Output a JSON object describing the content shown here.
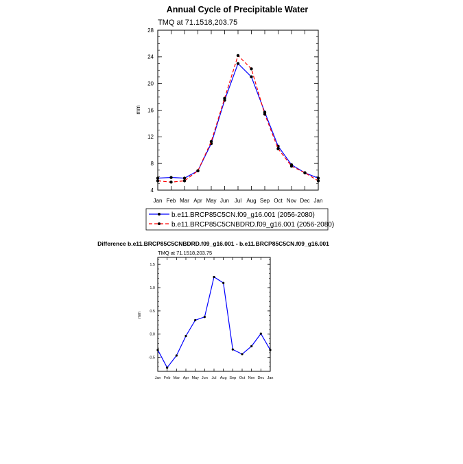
{
  "chart_data": [
    {
      "type": "line",
      "title": "Annual Cycle of Precipitable Water",
      "subtitle": "TMQ at 71.1518,203.75",
      "xlabel": "",
      "ylabel": "mm",
      "categories": [
        "Jan",
        "Feb",
        "Mar",
        "Apr",
        "May",
        "Jun",
        "Jul",
        "Aug",
        "Sep",
        "Oct",
        "Nov",
        "Dec",
        "Jan"
      ],
      "ylim": [
        4,
        28
      ],
      "yticks": [
        "4",
        "8",
        "12",
        "16",
        "20",
        "24",
        "28"
      ],
      "series": [
        {
          "name": "b.e11.BRCP85C5CN.f09_g16.001 (2056-2080)",
          "color": "#0000ff",
          "dash": "solid",
          "values": [
            5.8,
            5.9,
            5.8,
            6.9,
            11.0,
            17.5,
            23.0,
            21.0,
            15.7,
            10.6,
            7.8,
            6.6,
            5.8
          ]
        },
        {
          "name": "b.e11.BRCP85C5CNBDRD.f09_g16.001 (2056-2080)",
          "color": "#ff0000",
          "dash": "dashed",
          "values": [
            5.4,
            5.2,
            5.4,
            6.9,
            11.3,
            17.8,
            24.2,
            22.2,
            15.4,
            10.2,
            7.6,
            6.6,
            5.4
          ]
        }
      ],
      "legend": "below"
    },
    {
      "type": "line",
      "title": "Difference b.e11.BRCP85C5CNBDRD.f09_g16.001 - b.e11.BRCP85C5CN.f09_g16.001",
      "subtitle": "TMQ at 71.1518,203.75",
      "xlabel": "",
      "ylabel": "mm",
      "categories": [
        "Jan",
        "Feb",
        "Mar",
        "Apr",
        "May",
        "Jun",
        "Jul",
        "Aug",
        "Sep",
        "Oct",
        "Nov",
        "Dec",
        "Jan"
      ],
      "ylim": [
        -0.8,
        1.65
      ],
      "yticks": [
        "-0.5",
        "0.0",
        "0.5",
        "1.0",
        "1.5"
      ],
      "series": [
        {
          "color": "#0000ff",
          "values": [
            -0.34,
            -0.72,
            -0.46,
            -0.04,
            0.3,
            0.37,
            1.23,
            1.1,
            -0.33,
            -0.43,
            -0.26,
            0.01,
            -0.34
          ]
        }
      ]
    }
  ]
}
